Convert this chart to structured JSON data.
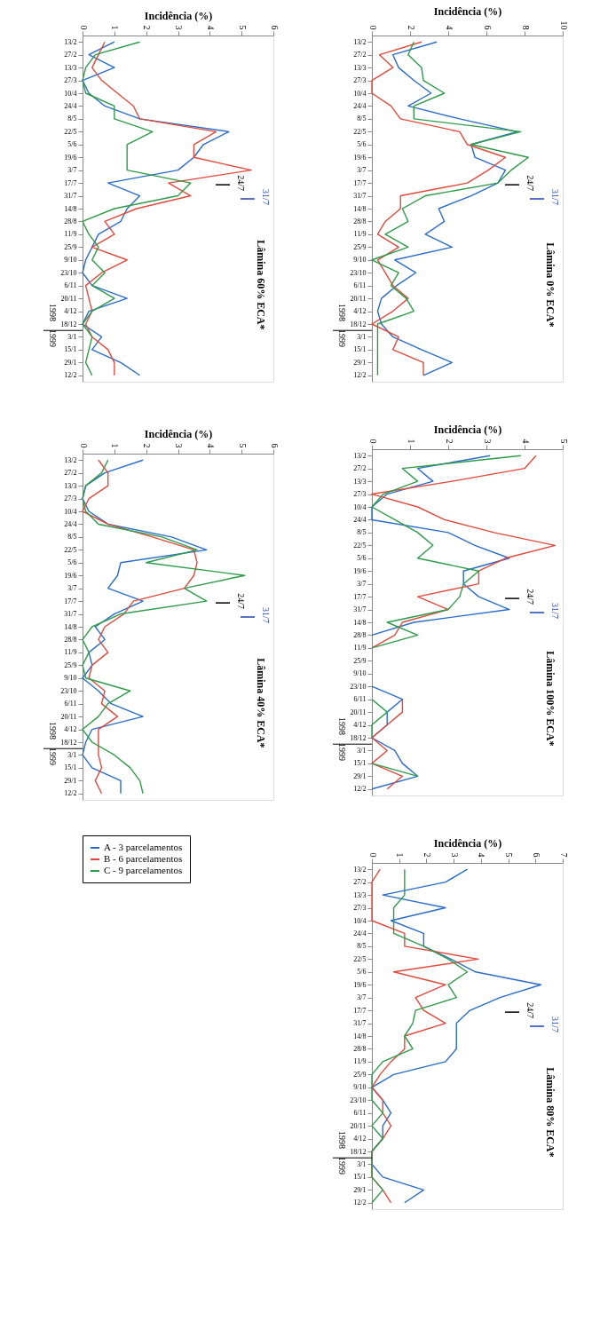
{
  "chart_data": [
    {
      "type": "line",
      "orientation": "horizontal",
      "title": "Lâmina 60% ECA*",
      "xlabel": "Incidência (%)",
      "xlim": [
        0,
        6
      ],
      "xticks": [
        0,
        1,
        2,
        3,
        4,
        5,
        6
      ],
      "legend": "bottom",
      "categories": [
        "13/2",
        "27/2",
        "13/3",
        "27/3",
        "10/4",
        "24/4",
        "8/5",
        "22/5",
        "5/6",
        "19/6",
        "3/7",
        "17/7",
        "31/7",
        "14/8",
        "28/8",
        "11/9",
        "25/9",
        "9/10",
        "23/10",
        "6/11",
        "20/11",
        "4/12",
        "18/12",
        "3/1",
        "15/1",
        "29/1",
        "12/2"
      ],
      "annotations": [
        "24/7",
        "31/7",
        "1998",
        "1999"
      ],
      "series": [
        {
          "name": "A - 3 parcelamentos",
          "color": "#2a6cc8",
          "values": [
            1.0,
            0.2,
            1.0,
            0.0,
            0.2,
            0.7,
            1.8,
            4.6,
            3.8,
            3.5,
            3.0,
            0.8,
            1.8,
            1.4,
            1.2,
            0.5,
            0.3,
            0.1,
            0.0,
            0.3,
            1.4,
            0.2,
            0.0,
            0.6,
            0.3,
            1.2,
            1.8
          ]
        },
        {
          "name": "B - 6 parcelamentos",
          "color": "#e04a3c",
          "values": [
            0.7,
            0.5,
            0.3,
            0.6,
            1.1,
            1.6,
            1.8,
            4.2,
            3.5,
            3.5,
            5.3,
            2.7,
            3.4,
            1.7,
            0.7,
            1.0,
            0.3,
            1.4,
            0.6,
            0.1,
            0.2,
            0.3,
            0.1,
            0.3,
            0.8,
            1.0,
            1.0
          ]
        },
        {
          "name": "C - 9 parcelamentos",
          "color": "#2f9a4a",
          "values": [
            1.8,
            0.4,
            0.1,
            0.0,
            0.1,
            1.0,
            1.0,
            2.2,
            1.4,
            1.4,
            1.4,
            3.4,
            3.0,
            1.0,
            0.0,
            0.2,
            0.5,
            0.3,
            0.7,
            0.3,
            1.0,
            0.3,
            0.0,
            0.3,
            0.2,
            0.1,
            0.3
          ]
        }
      ]
    },
    {
      "type": "line",
      "orientation": "horizontal",
      "title": "Lâmina 0% ECA*",
      "xlabel": "Incidência (%)",
      "xlim": [
        0,
        10
      ],
      "xticks": [
        0,
        2,
        4,
        6,
        8,
        10
      ],
      "categories": [
        "13/2",
        "27/2",
        "13/3",
        "27/3",
        "10/4",
        "24/4",
        "8/5",
        "22/5",
        "5/6",
        "19/6",
        "3/7",
        "17/7",
        "31/7",
        "14/8",
        "28/8",
        "11/9",
        "25/9",
        "9/10",
        "23/10",
        "6/11",
        "20/11",
        "4/12",
        "18/12",
        "3/1",
        "15/1",
        "29/1",
        "12/2"
      ],
      "annotations": [
        "24/7",
        "31/7",
        "1998",
        "1999"
      ],
      "series": [
        {
          "color": "#2a6cc8",
          "values": [
            3.4,
            1.1,
            1.4,
            2.2,
            3.1,
            1.9,
            4.6,
            7.6,
            5.2,
            5.4,
            7.0,
            6.6,
            5.2,
            3.5,
            3.8,
            2.8,
            4.2,
            1.2,
            2.3,
            1.3,
            0.5,
            0.3,
            0.5,
            1.1,
            2.6,
            4.2,
            2.7
          ]
        },
        {
          "color": "#e04a3c",
          "values": [
            2.6,
            0.4,
            1.1,
            0.0,
            0.0,
            1.0,
            1.5,
            4.6,
            5.0,
            7.0,
            6.1,
            5.0,
            1.5,
            1.5,
            0.7,
            0.3,
            1.4,
            0.3,
            0.7,
            1.1,
            1.9,
            1.1,
            0.0,
            1.4,
            1.1,
            2.7,
            2.7
          ]
        },
        {
          "color": "#2f9a4a",
          "values": [
            2.2,
            1.9,
            2.6,
            2.7,
            3.8,
            2.2,
            2.2,
            7.8,
            5.2,
            8.2,
            7.3,
            6.6,
            2.8,
            1.6,
            1.9,
            0.7,
            1.9,
            0.0,
            1.4,
            1.0,
            1.8,
            2.2,
            0.3,
            0.3,
            0.3,
            0.3,
            0.3
          ]
        }
      ]
    },
    {
      "type": "line",
      "orientation": "horizontal",
      "title": "Lâmina 40% ECA*",
      "xlabel": "Incidência (%)",
      "xlim": [
        0,
        6
      ],
      "xticks": [
        0,
        1,
        2,
        3,
        4,
        5,
        6
      ],
      "categories": [
        "13/2",
        "27/2",
        "13/3",
        "27/3",
        "10/4",
        "24/4",
        "8/5",
        "22/5",
        "5/6",
        "19/6",
        "3/7",
        "17/7",
        "31/7",
        "14/8",
        "28/8",
        "11/9",
        "25/9",
        "9/10",
        "23/10",
        "6/11",
        "20/11",
        "4/12",
        "18/12",
        "3/1",
        "15/1",
        "29/1",
        "12/2"
      ],
      "annotations": [
        "24/7",
        "31/7",
        "1998",
        "1999"
      ],
      "series": [
        {
          "color": "#2a6cc8",
          "values": [
            1.9,
            0.7,
            0.1,
            0.0,
            0.2,
            0.8,
            2.8,
            3.9,
            1.2,
            1.1,
            0.8,
            1.9,
            1.0,
            0.4,
            0.7,
            0.2,
            0.3,
            0.0,
            0.5,
            0.9,
            1.9,
            0.3,
            0.1,
            0.0,
            0.3,
            1.2,
            1.2
          ]
        },
        {
          "color": "#e04a3c",
          "values": [
            0.5,
            0.8,
            0.8,
            0.2,
            0.0,
            0.8,
            2.2,
            3.5,
            3.6,
            3.5,
            3.2,
            1.6,
            1.3,
            0.7,
            0.5,
            0.8,
            0.3,
            0.2,
            0.7,
            0.6,
            1.1,
            0.5,
            0.5,
            0.5,
            0.6,
            0.4,
            0.6
          ]
        },
        {
          "color": "#2f9a4a",
          "values": [
            0.8,
            0.6,
            0.1,
            0.0,
            0.1,
            0.5,
            2.5,
            3.6,
            2.0,
            5.1,
            3.2,
            3.9,
            1.2,
            0.3,
            0.0,
            0.2,
            0.0,
            0.1,
            1.5,
            0.8,
            0.5,
            0.0,
            0.3,
            1.0,
            1.5,
            1.8,
            1.9
          ]
        }
      ]
    },
    {
      "type": "line",
      "orientation": "horizontal",
      "title": "Lâmina 100% ECA*",
      "xlabel": "Incidência (%)",
      "xlim": [
        0,
        5
      ],
      "xticks": [
        0,
        1,
        2,
        3,
        4,
        5
      ],
      "categories": [
        "13/2",
        "27/2",
        "13/3",
        "27/3",
        "10/4",
        "24/4",
        "8/5",
        "22/5",
        "5/6",
        "19/6",
        "3/7",
        "17/7",
        "31/7",
        "14/8",
        "28/8",
        "11/9",
        "25/9",
        "9/10",
        "23/10",
        "6/11",
        "20/11",
        "4/12",
        "18/12",
        "3/1",
        "15/1",
        "29/1",
        "12/2"
      ],
      "annotations": [
        "24/7",
        "31/7",
        "1998",
        "1999"
      ],
      "series": [
        {
          "color": "#2a6cc8",
          "values": [
            3.1,
            1.2,
            1.6,
            0.4,
            0.0,
            0.0,
            2.0,
            2.7,
            3.6,
            2.4,
            2.4,
            2.8,
            3.6,
            1.1,
            0.0,
            null,
            null,
            null,
            0.0,
            0.8,
            0.4,
            0.4,
            0.0,
            0.6,
            0.8,
            1.2,
            0.0
          ]
        },
        {
          "color": "#e04a3c",
          "values": [
            4.3,
            4.0,
            2.1,
            0.0,
            1.2,
            1.9,
            3.2,
            4.8,
            3.5,
            2.8,
            2.8,
            1.2,
            2.0,
            0.8,
            0.6,
            0.0,
            null,
            null,
            null,
            0.8,
            0.8,
            0.4,
            0.0,
            0.4,
            0.0,
            0.8,
            0.4
          ]
        },
        {
          "color": "#2f9a4a",
          "values": [
            3.9,
            0.8,
            1.2,
            0.3,
            0.0,
            0.6,
            1.2,
            1.6,
            1.2,
            2.8,
            2.4,
            2.3,
            2.0,
            0.4,
            1.2,
            0.0,
            null,
            null,
            null,
            0.0,
            0.4,
            0.0,
            0.0,
            null,
            0.0,
            1.2,
            null
          ]
        }
      ]
    },
    {
      "type": "line",
      "orientation": "horizontal",
      "title": "Lâmina 80% ECA*",
      "xlabel": "Incidência (%)",
      "xlim": [
        0,
        7
      ],
      "xticks": [
        0,
        1,
        2,
        3,
        4,
        5,
        6,
        7
      ],
      "categories": [
        "13/2",
        "27/2",
        "13/3",
        "27/3",
        "10/4",
        "24/4",
        "8/5",
        "22/5",
        "5/6",
        "19/6",
        "3/7",
        "17/7",
        "31/7",
        "14/8",
        "28/8",
        "11/9",
        "25/9",
        "9/10",
        "23/10",
        "6/11",
        "20/11",
        "4/12",
        "18/12",
        "3/1",
        "15/1",
        "29/1",
        "12/2"
      ],
      "annotations": [
        "24/7",
        "31/7",
        "1998",
        "1999"
      ],
      "series": [
        {
          "color": "#2a6cc8",
          "values": [
            3.5,
            2.7,
            0.4,
            2.7,
            0.7,
            1.9,
            1.9,
            2.9,
            3.8,
            6.2,
            4.7,
            3.6,
            3.1,
            3.1,
            3.1,
            2.7,
            0.8,
            0.0,
            0.4,
            0.7,
            0.4,
            0.4,
            0.0,
            0.0,
            0.4,
            1.9,
            1.2
          ]
        },
        {
          "color": "#e04a3c",
          "values": [
            0.3,
            0.0,
            0.0,
            0.0,
            0.0,
            1.2,
            1.2,
            3.9,
            0.8,
            2.7,
            1.6,
            1.9,
            2.7,
            1.2,
            1.2,
            0.7,
            0.3,
            0.0,
            0.4,
            0.4,
            0.7,
            0.4,
            0.0,
            0.0,
            0.0,
            0.4,
            0.7
          ]
        },
        {
          "color": "#2f9a4a",
          "values": [
            1.2,
            1.2,
            1.2,
            0.8,
            0.8,
            0.8,
            1.9,
            2.8,
            3.5,
            2.8,
            3.1,
            1.6,
            1.5,
            1.2,
            1.5,
            0.4,
            0.0,
            0.0,
            0.0,
            0.4,
            0.0,
            0.4,
            0.0,
            0.0,
            0.0,
            0.4,
            0.0
          ]
        }
      ]
    }
  ]
}
